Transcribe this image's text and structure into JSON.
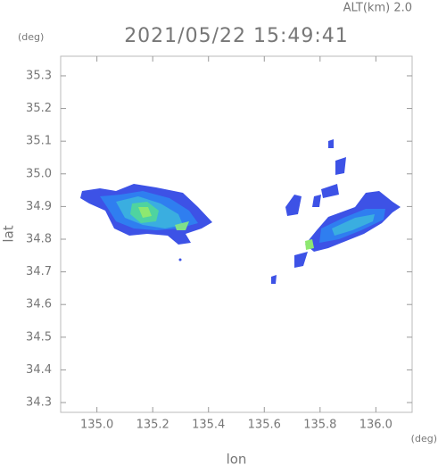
{
  "chart_data": {
    "type": "radar-map",
    "altitude_label": "ALT(km) 2.0",
    "title": "2021/05/22 15:49:41",
    "y_unit": "(deg)",
    "x_unit": "(deg)",
    "ylabel": "lat",
    "xlabel": "lon",
    "xlim": [
      134.87,
      136.13
    ],
    "xticks": [
      {
        "value": 135,
        "label": "135.0"
      },
      135.2,
      135.4,
      135.6,
      135.8,
      {
        "value": 136,
        "label": "136.0"
      }
    ],
    "ylim": [
      34.27,
      35.36
    ],
    "yticks": [
      34.3,
      34.4,
      34.5,
      34.6,
      34.7,
      34.8,
      34.9,
      {
        "value": 35,
        "label": "35.0"
      },
      35.1,
      35.2,
      35.3
    ]
  }
}
